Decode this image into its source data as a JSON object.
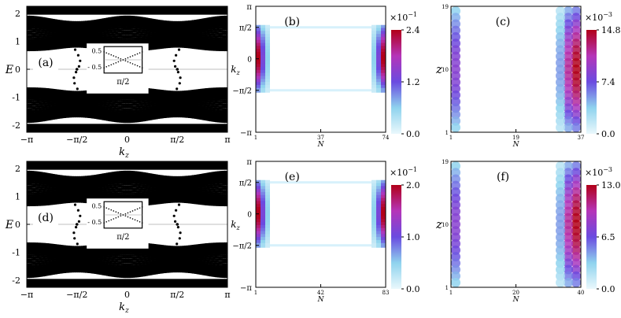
{
  "chart_data": [
    {
      "id": "a",
      "panel_label": "(a)",
      "type": "scatter",
      "description_source": "band structure dots",
      "xlabel_main": "k",
      "xlabel_sub": "z",
      "ylabel": "E",
      "xticks": [
        "−π",
        "−π/2",
        "0",
        "π/2",
        "π"
      ],
      "yticks": [
        "-2",
        "-1",
        "0",
        "1",
        "2"
      ],
      "ylim": [
        -2.25,
        2.25
      ],
      "inset": {
        "yticks": [
          "0.5",
          "- 0.5"
        ],
        "xlabel": "π/2"
      }
    },
    {
      "id": "b",
      "panel_label": "(b)",
      "type": "heatmap",
      "xlabel": "N",
      "ylabel_main": "k",
      "ylabel_sub": "z",
      "xticks": [
        "1",
        "37",
        "74"
      ],
      "yticks": [
        "π",
        "π/2",
        "0",
        "−π/2",
        "−π"
      ],
      "colorbar": {
        "exponent": "×10",
        "power": "−1",
        "ticks": [
          "2.4",
          "1.2",
          "0.0"
        ],
        "range": [
          0,
          2.4
        ]
      }
    },
    {
      "id": "c",
      "panel_label": "(c)",
      "type": "heatmap",
      "xlabel": "N",
      "ylabel": "z",
      "xticks": [
        "1",
        "19",
        "37"
      ],
      "yticks": [
        "19",
        "10",
        "1"
      ],
      "colorbar": {
        "exponent": "×10",
        "power": "−3",
        "ticks": [
          "14.8",
          "7.4",
          "0.0"
        ],
        "range": [
          0,
          14.8
        ]
      }
    },
    {
      "id": "d",
      "panel_label": "(d)",
      "type": "scatter",
      "xlabel_main": "k",
      "xlabel_sub": "z",
      "ylabel": "E",
      "xticks": [
        "−π",
        "−π/2",
        "0",
        "π/2",
        "π"
      ],
      "yticks": [
        "-2",
        "-1",
        "0",
        "1",
        "2"
      ],
      "ylim": [
        -2.25,
        2.25
      ],
      "inset": {
        "yticks": [
          "0.5",
          "- 0.5"
        ],
        "xlabel": "π/2"
      }
    },
    {
      "id": "e",
      "panel_label": "(e)",
      "type": "heatmap",
      "xlabel": "N",
      "ylabel_main": "k",
      "ylabel_sub": "z",
      "xticks": [
        "1",
        "42",
        "83"
      ],
      "yticks": [
        "π",
        "π/2",
        "0",
        "−π/2",
        "−π"
      ],
      "colorbar": {
        "exponent": "×10",
        "power": "−1",
        "ticks": [
          "2.0",
          "1.0",
          "0.0"
        ],
        "range": [
          0,
          2.0
        ]
      }
    },
    {
      "id": "f",
      "panel_label": "(f)",
      "type": "heatmap",
      "xlabel": "N",
      "ylabel": "z",
      "xticks": [
        "1",
        "20",
        "40"
      ],
      "yticks": [
        "19",
        "10",
        "1"
      ],
      "colorbar": {
        "exponent": "×10",
        "power": "−3",
        "ticks": [
          "13.0",
          "6.5",
          "0.0"
        ],
        "range": [
          0,
          13.0
        ]
      }
    }
  ]
}
